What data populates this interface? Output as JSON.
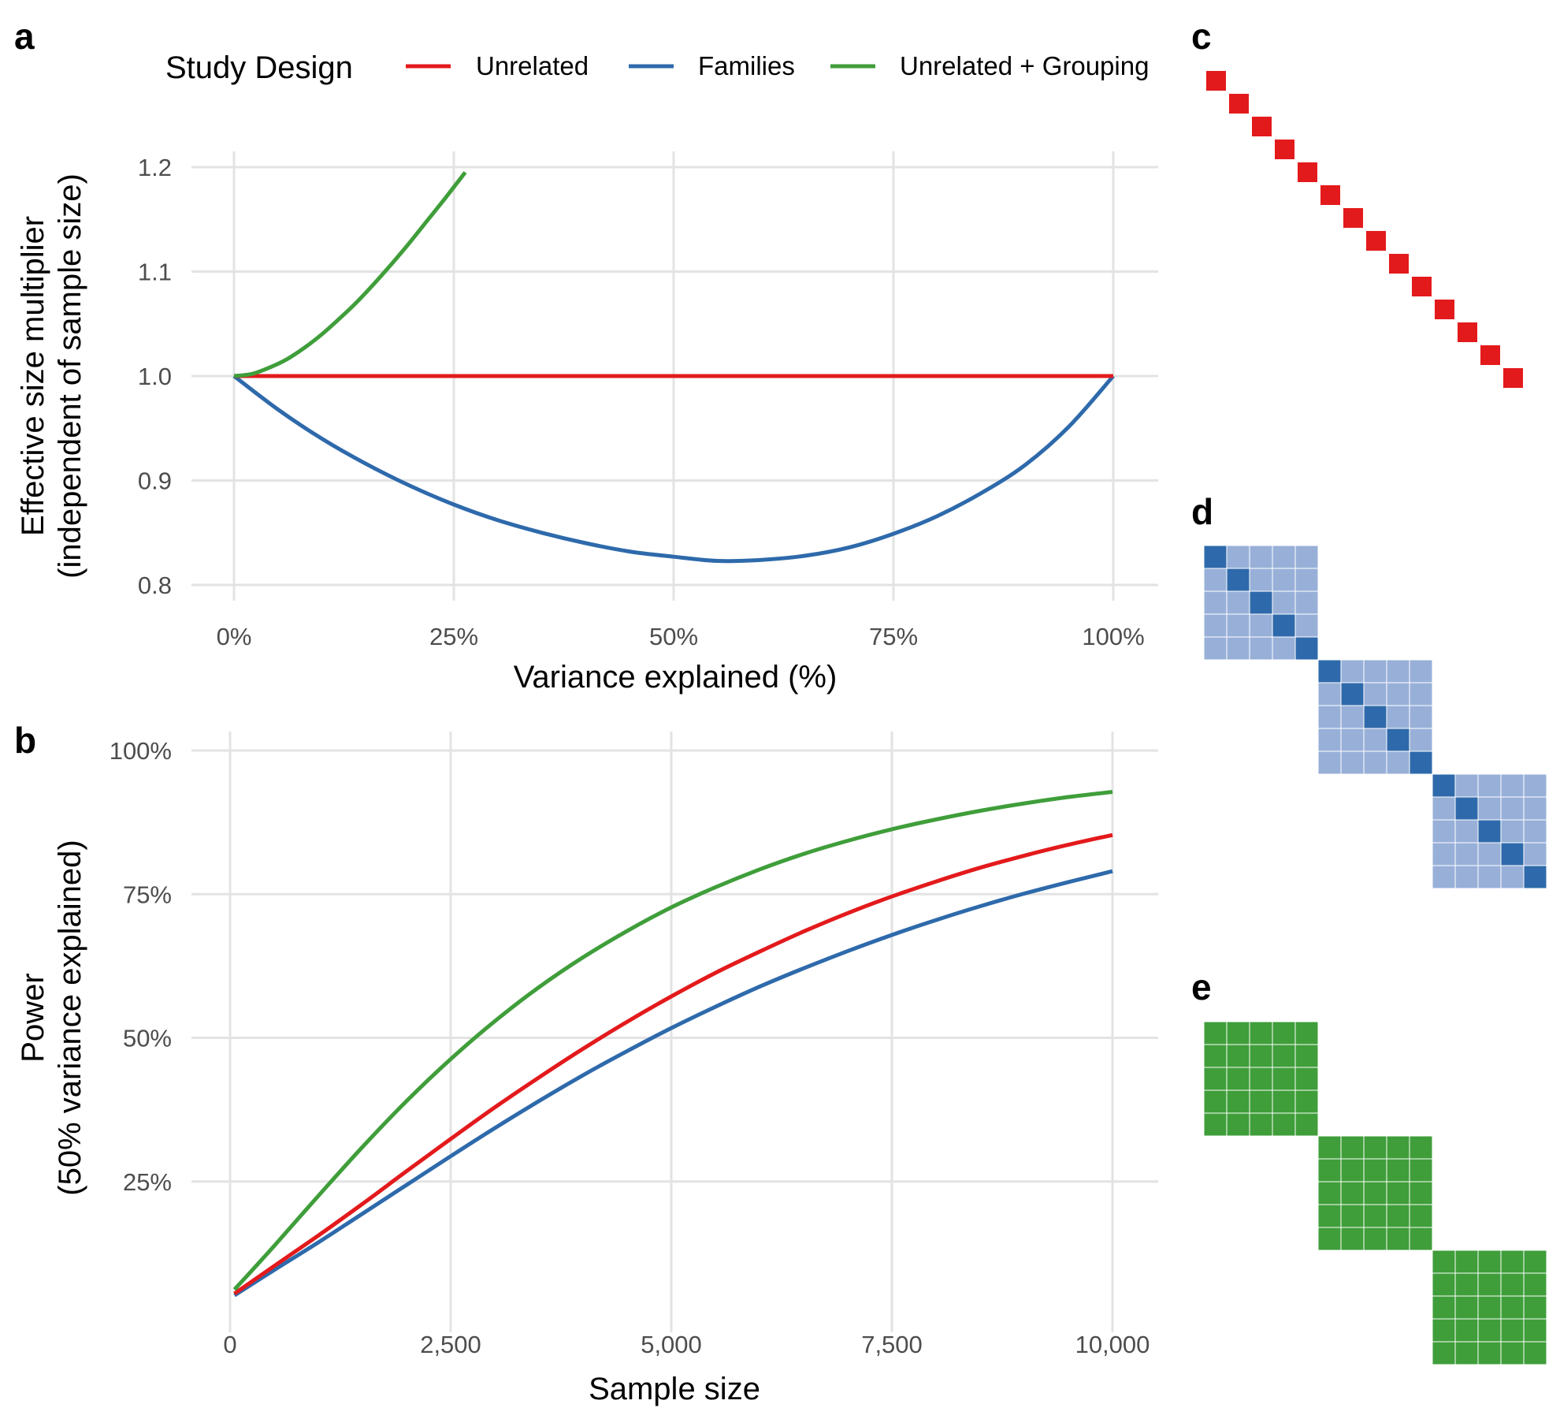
{
  "legend": {
    "title": "Study Design",
    "entries": [
      {
        "label": "Unrelated",
        "color": "#e31a1c"
      },
      {
        "label": "Families",
        "color": "#2e6aab"
      },
      {
        "label": "Unrelated + Grouping",
        "color": "#3f9e3a"
      }
    ]
  },
  "panel_letters": {
    "a": "a",
    "b": "b",
    "c": "c",
    "d": "d",
    "e": "e"
  },
  "chart_data": [
    {
      "panel": "a",
      "type": "line",
      "xlabel": "Variance explained (%)",
      "ylabel_line1": "Effective size multiplier",
      "ylabel_line2": "(independent of sample size)",
      "xlim": [
        0,
        100
      ],
      "ylim": [
        0.8,
        1.2
      ],
      "x_ticks": [
        0,
        25,
        50,
        75,
        100
      ],
      "x_tick_labels": [
        "0%",
        "25%",
        "50%",
        "75%",
        "100%"
      ],
      "y_ticks": [
        0.8,
        0.9,
        1.0,
        1.1,
        1.2
      ],
      "y_tick_labels": [
        "0.8",
        "0.9",
        "1.0",
        "1.1",
        "1.2"
      ],
      "grid": true,
      "series": [
        {
          "name": "Unrelated",
          "x": [
            0,
            100
          ],
          "y": [
            1.0,
            1.0
          ]
        },
        {
          "name": "Families",
          "x": [
            0,
            5,
            10,
            15,
            20,
            25,
            30,
            35,
            40,
            45,
            50,
            55,
            60,
            65,
            70,
            75,
            80,
            85,
            90,
            95,
            100
          ],
          "y": [
            1.0,
            0.968,
            0.94,
            0.916,
            0.895,
            0.877,
            0.862,
            0.85,
            0.84,
            0.832,
            0.827,
            0.823,
            0.824,
            0.828,
            0.836,
            0.849,
            0.866,
            0.888,
            0.915,
            0.952,
            1.0
          ]
        },
        {
          "name": "Unrelated + Grouping",
          "x": [
            0,
            2,
            4,
            6,
            8,
            10,
            12,
            14,
            16,
            18,
            20,
            22,
            24,
            26.3
          ],
          "y": [
            1.0,
            1.002,
            1.008,
            1.016,
            1.027,
            1.04,
            1.055,
            1.071,
            1.089,
            1.108,
            1.128,
            1.149,
            1.17,
            1.195
          ]
        }
      ]
    },
    {
      "panel": "b",
      "type": "line",
      "xlabel": "Sample size",
      "ylabel_line1": "Power",
      "ylabel_line2": "(50% variance explained)",
      "xlim": [
        0,
        10000
      ],
      "ylim": [
        0,
        100
      ],
      "x_ticks": [
        0,
        2500,
        5000,
        7500,
        10000
      ],
      "x_tick_labels": [
        "0",
        "2,500",
        "5,000",
        "7,500",
        "10,000"
      ],
      "y_ticks": [
        25,
        50,
        75,
        100
      ],
      "y_tick_labels": [
        "25%",
        "50%",
        "75%",
        "100%"
      ],
      "grid": true,
      "series": [
        {
          "name": "Unrelated",
          "x": [
            50,
            500,
            1000,
            1500,
            2000,
            2500,
            3000,
            3500,
            4000,
            4500,
            5000,
            5500,
            6000,
            6500,
            7000,
            7500,
            8000,
            8500,
            9000,
            9500,
            10000
          ],
          "y": [
            5.5,
            10.3,
            15.6,
            21.1,
            26.8,
            32.4,
            37.9,
            43.1,
            48.1,
            52.8,
            57.2,
            61.3,
            65.0,
            68.5,
            71.7,
            74.6,
            77.2,
            79.6,
            81.7,
            83.6,
            85.3
          ]
        },
        {
          "name": "Families",
          "x": [
            50,
            500,
            1000,
            1500,
            2000,
            2500,
            3000,
            3500,
            4000,
            4500,
            5000,
            5500,
            6000,
            6500,
            7000,
            7500,
            8000,
            8500,
            9000,
            9500,
            10000
          ],
          "y": [
            5.2,
            9.6,
            14.4,
            19.4,
            24.4,
            29.4,
            34.3,
            39.0,
            43.5,
            47.7,
            51.7,
            55.4,
            58.9,
            62.1,
            65.1,
            67.9,
            70.5,
            72.9,
            75.1,
            77.1,
            79.0
          ]
        },
        {
          "name": "Unrelated + Grouping",
          "x": [
            50,
            500,
            1000,
            1500,
            2000,
            2500,
            3000,
            3500,
            4000,
            4500,
            5000,
            5500,
            6000,
            6500,
            7000,
            7500,
            8000,
            8500,
            9000,
            9500,
            10000
          ],
          "y": [
            6.2,
            13.8,
            22.5,
            31.0,
            39.0,
            46.3,
            52.9,
            58.8,
            64.0,
            68.6,
            72.7,
            76.2,
            79.3,
            82.0,
            84.3,
            86.3,
            88.0,
            89.5,
            90.8,
            91.9,
            92.8
          ]
        }
      ]
    },
    {
      "panel": "c",
      "type": "heatmap",
      "size": 14,
      "pattern": "identity",
      "colors": {
        "diagonal": "#e31a1c"
      }
    },
    {
      "panel": "d",
      "type": "heatmap",
      "size": 15,
      "block_size": 5,
      "pattern": "block-diagonal-with-strong-diagonal",
      "colors": {
        "diagonal": "#2e6aab",
        "block": "#98b0d8"
      }
    },
    {
      "panel": "e",
      "type": "heatmap",
      "size": 15,
      "block_size": 5,
      "pattern": "block-diagonal",
      "colors": {
        "block": "#3f9e3a"
      }
    }
  ]
}
